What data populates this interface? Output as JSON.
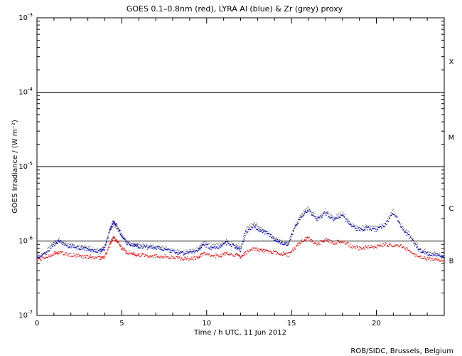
{
  "chart_data": {
    "type": "scatter",
    "title": "GOES 0.1–0.8nm (red), LYRA Al (blue) & Zr (grey) proxy",
    "xlabel": "Time / h UTC, 11 Jun 2012",
    "ylabel": "GOES Irradiance / (W m⁻²)",
    "credit": "ROB/SIDC, Brussels, Belgium",
    "xlim": [
      0,
      24
    ],
    "ylim": [
      1e-07,
      0.001
    ],
    "yscale": "log",
    "x_ticks": [
      {
        "value": 0,
        "label": "0"
      },
      {
        "value": 5,
        "label": "5"
      },
      {
        "value": 10,
        "label": "10"
      },
      {
        "value": 15,
        "label": "15"
      },
      {
        "value": 20,
        "label": "20"
      }
    ],
    "y_ticks": [
      {
        "value": 1e-07,
        "mantissa": "10",
        "exponent": "-7"
      },
      {
        "value": 1e-06,
        "mantissa": "10",
        "exponent": "-6"
      },
      {
        "value": 1e-05,
        "mantissa": "10",
        "exponent": "-5"
      },
      {
        "value": 0.0001,
        "mantissa": "10",
        "exponent": "-4"
      },
      {
        "value": 0.001,
        "mantissa": "10",
        "exponent": "-3"
      }
    ],
    "threshold_lines": [
      1e-06,
      1e-05,
      0.0001
    ],
    "flare_classes": [
      {
        "label": "B",
        "value": 5.5e-07
      },
      {
        "label": "C",
        "value": 2.8e-06
      },
      {
        "label": "M",
        "value": 2.5e-05
      },
      {
        "label": "X",
        "value": 0.00026
      }
    ],
    "series": [
      {
        "color": "#ff0000",
        "x": [
          0,
          0.5,
          1.0,
          1.3,
          1.8,
          2.3,
          2.8,
          3.2,
          3.7,
          4.0,
          4.3,
          4.5,
          4.7,
          5.0,
          5.3,
          5.7,
          6.0,
          6.5,
          7.0,
          7.5,
          8.0,
          8.5,
          9.0,
          9.5,
          9.8,
          10.3,
          10.8,
          11.2,
          11.7,
          12.0,
          12.3,
          12.8,
          13.2,
          13.6,
          14.0,
          14.4,
          14.8,
          15.2,
          15.6,
          16.0,
          16.5,
          17.0,
          17.5,
          18.0,
          18.5,
          19.0,
          19.5,
          20.0,
          20.5,
          21.0,
          21.5,
          22.0,
          22.5,
          23.0,
          23.5,
          24.0
        ],
        "y": [
          5.5e-07,
          6e-07,
          6.8e-07,
          7e-07,
          6.6e-07,
          6.3e-07,
          6.2e-07,
          6e-07,
          5.9e-07,
          6.2e-07,
          9e-07,
          1.15e-06,
          1e-06,
          8e-07,
          7e-07,
          6.8e-07,
          6.5e-07,
          6.4e-07,
          6.3e-07,
          6.2e-07,
          6e-07,
          5.8e-07,
          5.8e-07,
          6e-07,
          6.8e-07,
          6.3e-07,
          6.4e-07,
          6.8e-07,
          6.5e-07,
          6e-07,
          7e-07,
          8e-07,
          7.5e-07,
          7.2e-07,
          7e-07,
          6.8e-07,
          6.5e-07,
          8e-07,
          1e-06,
          1.1e-06,
          9e-07,
          1.05e-06,
          9.5e-07,
          1e-06,
          8.5e-07,
          8e-07,
          8.2e-07,
          8.5e-07,
          9e-07,
          8.8e-07,
          8.5e-07,
          7.5e-07,
          6e-07,
          5.8e-07,
          5.7e-07,
          5.5e-07
        ]
      },
      {
        "color": "#888888",
        "x": [
          0,
          0.5,
          1.0,
          1.3,
          1.8,
          2.3,
          2.8,
          3.2,
          3.7,
          4.0,
          4.3,
          4.5,
          4.7,
          5.0,
          5.3,
          5.7,
          6.0,
          6.5,
          7.0,
          7.5,
          8.0,
          8.5,
          9.0,
          9.5,
          9.8,
          10.3,
          10.8,
          11.2,
          11.7,
          12.0,
          12.3,
          12.8,
          13.2,
          13.6,
          14.0,
          14.4,
          14.8,
          15.2,
          15.6,
          16.0,
          16.5,
          17.0,
          17.5,
          18.0,
          18.5,
          19.0,
          19.5,
          20.0,
          20.5,
          21.0,
          21.5,
          22.0,
          22.5,
          23.0,
          23.5,
          24.0
        ],
        "y": [
          6.2e-07,
          7e-07,
          9.5e-07,
          1.05e-06,
          9e-07,
          8.5e-07,
          8.2e-07,
          8e-07,
          7.6e-07,
          8.5e-07,
          1.4e-06,
          1.7e-06,
          1.5e-06,
          1.2e-06,
          9.5e-07,
          9e-07,
          8.8e-07,
          8.5e-07,
          8.3e-07,
          8e-07,
          7.6e-07,
          7.2e-07,
          7.3e-07,
          7.8e-07,
          9.5e-07,
          8.5e-07,
          9e-07,
          1e-06,
          8.8e-07,
          8e-07,
          1.4e-06,
          1.8e-06,
          1.45e-06,
          1.3e-06,
          1.1e-06,
          1e-06,
          9e-07,
          1.6e-06,
          2.3e-06,
          2.8e-06,
          2e-06,
          2.6e-06,
          2e-06,
          2.4e-06,
          1.7e-06,
          1.5e-06,
          1.6e-06,
          1.5e-06,
          1.7e-06,
          2.6e-06,
          1.6e-06,
          1.2e-06,
          8e-07,
          7.2e-07,
          7e-07,
          6.2e-07
        ]
      },
      {
        "color": "#0000cc",
        "x": [
          0,
          0.5,
          1.0,
          1.3,
          1.8,
          2.3,
          2.8,
          3.2,
          3.7,
          4.0,
          4.3,
          4.5,
          4.7,
          5.0,
          5.3,
          5.7,
          6.0,
          6.5,
          7.0,
          7.5,
          8.0,
          8.5,
          9.0,
          9.5,
          9.8,
          10.3,
          10.8,
          11.2,
          11.7,
          12.0,
          12.3,
          12.8,
          13.2,
          13.6,
          14.0,
          14.4,
          14.8,
          15.2,
          15.6,
          16.0,
          16.5,
          17.0,
          17.5,
          18.0,
          18.5,
          19.0,
          19.5,
          20.0,
          20.5,
          21.0,
          21.5,
          22.0,
          22.5,
          23.0,
          23.5,
          24.0
        ],
        "y": [
          6e-07,
          6.8e-07,
          9e-07,
          1e-06,
          8.6e-07,
          8.2e-07,
          7.8e-07,
          7.6e-07,
          7.2e-07,
          8e-07,
          1.4e-06,
          1.8e-06,
          1.6e-06,
          1.2e-06,
          9.2e-07,
          8.8e-07,
          8.5e-07,
          8.2e-07,
          8e-07,
          7.8e-07,
          7.3e-07,
          6.8e-07,
          7e-07,
          7.5e-07,
          9e-07,
          8e-07,
          8.4e-07,
          9.5e-07,
          8.3e-07,
          7.6e-07,
          1.3e-06,
          1.6e-06,
          1.35e-06,
          1.25e-06,
          1.05e-06,
          9.5e-07,
          8.8e-07,
          1.5e-06,
          2.2e-06,
          2.6e-06,
          1.9e-06,
          2.4e-06,
          1.9e-06,
          2.2e-06,
          1.6e-06,
          1.4e-06,
          1.5e-06,
          1.4e-06,
          1.6e-06,
          2.4e-06,
          1.5e-06,
          1.1e-06,
          7.6e-07,
          6.8e-07,
          6.6e-07,
          6e-07
        ]
      }
    ]
  }
}
